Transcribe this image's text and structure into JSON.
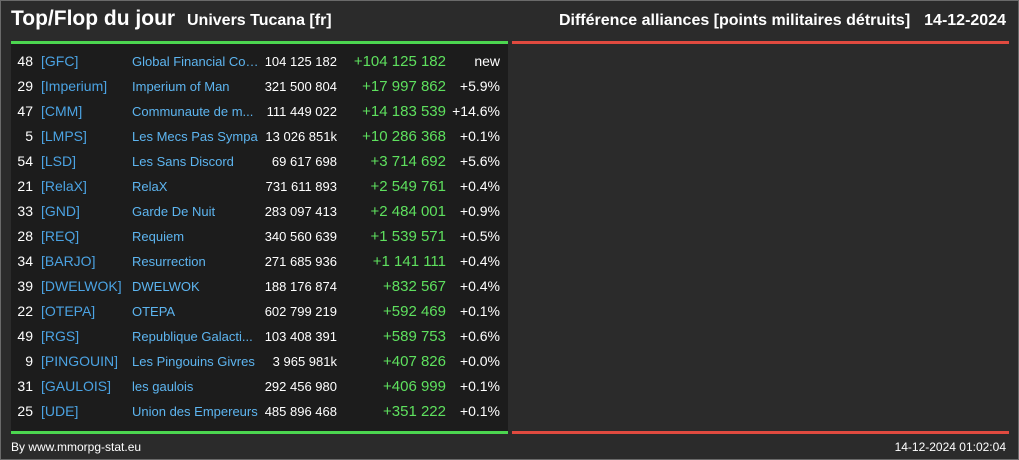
{
  "header": {
    "title": "Top/Flop du jour",
    "univers": "Univers Tucana [fr]",
    "category": "Différence alliances [points militaires détruits]",
    "date": "14-12-2024"
  },
  "colors": {
    "accent_green": "#4cd650",
    "accent_red": "#e04a3f",
    "tag_blue": "#4ba3e3",
    "diff_green": "#5ee05e"
  },
  "rows": [
    {
      "rank": "48",
      "tag": "[GFC]",
      "name": "Global Financial Coa...",
      "points": "104 125 182",
      "diff": "+104 125 182",
      "pct": "new"
    },
    {
      "rank": "29",
      "tag": "[Imperium]",
      "name": "Imperium of Man",
      "points": "321 500 804",
      "diff": "+17 997 862",
      "pct": "+5.9%"
    },
    {
      "rank": "47",
      "tag": "[CMM]",
      "name": "Communaute de m...",
      "points": "111 449 022",
      "diff": "+14 183 539",
      "pct": "+14.6%"
    },
    {
      "rank": "5",
      "tag": "[LMPS]",
      "name": "Les Mecs Pas Sympa",
      "points": "13 026 851k",
      "diff": "+10 286 368",
      "pct": "+0.1%"
    },
    {
      "rank": "54",
      "tag": "[LSD]",
      "name": "Les Sans Discord",
      "points": "69 617 698",
      "diff": "+3 714 692",
      "pct": "+5.6%"
    },
    {
      "rank": "21",
      "tag": "[RelaX]",
      "name": "RelaX",
      "points": "731 611 893",
      "diff": "+2 549 761",
      "pct": "+0.4%"
    },
    {
      "rank": "33",
      "tag": "[GND]",
      "name": "Garde De Nuit",
      "points": "283 097 413",
      "diff": "+2 484 001",
      "pct": "+0.9%"
    },
    {
      "rank": "28",
      "tag": "[REQ]",
      "name": "Requiem",
      "points": "340 560 639",
      "diff": "+1 539 571",
      "pct": "+0.5%"
    },
    {
      "rank": "34",
      "tag": "[BARJO]",
      "name": "Resurrection",
      "points": "271 685 936",
      "diff": "+1 141 111",
      "pct": "+0.4%"
    },
    {
      "rank": "39",
      "tag": "[DWELWOK]",
      "name": "DWELWOK",
      "points": "188 176 874",
      "diff": "+832 567",
      "pct": "+0.4%"
    },
    {
      "rank": "22",
      "tag": "[OTEPA]",
      "name": "OTEPA",
      "points": "602 799 219",
      "diff": "+592 469",
      "pct": "+0.1%"
    },
    {
      "rank": "49",
      "tag": "[RGS]",
      "name": "Republique Galacti...",
      "points": "103 408 391",
      "diff": "+589 753",
      "pct": "+0.6%"
    },
    {
      "rank": "9",
      "tag": "[PINGOUIN]",
      "name": "Les Pingouins Givres",
      "points": "3 965 981k",
      "diff": "+407 826",
      "pct": "+0.0%"
    },
    {
      "rank": "31",
      "tag": "[GAULOIS]",
      "name": "les gaulois",
      "points": "292 456 980",
      "diff": "+406 999",
      "pct": "+0.1%"
    },
    {
      "rank": "25",
      "tag": "[UDE]",
      "name": "Union des Empereurs",
      "points": "485 896 468",
      "diff": "+351 222",
      "pct": "+0.1%"
    }
  ],
  "footer": {
    "source": "By www.mmorpg-stat.eu",
    "timestamp": "14-12-2024 01:02:04"
  }
}
